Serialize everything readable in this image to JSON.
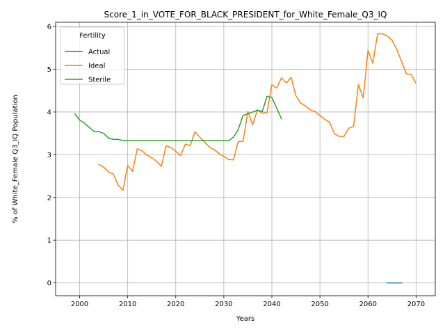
{
  "chart_data": {
    "type": "line",
    "title": "Score_1_in_VOTE_FOR_BLACK_PRESIDENT_for_White_Female_Q3_IQ",
    "xlabel": "Years",
    "ylabel": "% of White_Female Q3_IQ Population",
    "xlim": [
      1995,
      2074
    ],
    "ylim": [
      -0.3,
      6.1
    ],
    "xticks": [
      2000,
      2010,
      2020,
      2030,
      2040,
      2050,
      2060,
      2070
    ],
    "yticks": [
      0,
      1,
      2,
      3,
      4,
      5,
      6
    ],
    "grid": true,
    "legend": {
      "title": "Fertility",
      "placement": "top-left"
    },
    "series": [
      {
        "name": "Actual",
        "color": "#1f77b4",
        "points": [
          [
            2064,
            0.0
          ],
          [
            2065,
            0.0
          ],
          [
            2066,
            0.0
          ],
          [
            2067,
            0.0
          ]
        ]
      },
      {
        "name": "Ideal",
        "color": "#ff7f0e",
        "points": [
          [
            2004,
            2.77
          ],
          [
            2005,
            2.71
          ],
          [
            2006,
            2.6
          ],
          [
            2007,
            2.55
          ],
          [
            2008,
            2.29
          ],
          [
            2009,
            2.17
          ],
          [
            2010,
            2.75
          ],
          [
            2011,
            2.61
          ],
          [
            2012,
            3.14
          ],
          [
            2013,
            3.09
          ],
          [
            2014,
            2.99
          ],
          [
            2015,
            2.93
          ],
          [
            2016,
            2.85
          ],
          [
            2017,
            2.73
          ],
          [
            2018,
            3.21
          ],
          [
            2019,
            3.17
          ],
          [
            2020,
            3.08
          ],
          [
            2021,
            2.98
          ],
          [
            2022,
            3.25
          ],
          [
            2023,
            3.21
          ],
          [
            2024,
            3.54
          ],
          [
            2025,
            3.41
          ],
          [
            2026,
            3.3
          ],
          [
            2027,
            3.18
          ],
          [
            2028,
            3.12
          ],
          [
            2029,
            3.03
          ],
          [
            2030,
            2.96
          ],
          [
            2031,
            2.89
          ],
          [
            2032,
            2.88
          ],
          [
            2033,
            3.31
          ],
          [
            2034,
            3.31
          ],
          [
            2035,
            4.01
          ],
          [
            2036,
            3.7
          ],
          [
            2037,
            4.05
          ],
          [
            2038,
            3.97
          ],
          [
            2039,
            3.99
          ],
          [
            2040,
            4.64
          ],
          [
            2041,
            4.56
          ],
          [
            2042,
            4.8
          ],
          [
            2043,
            4.68
          ],
          [
            2044,
            4.81
          ],
          [
            2045,
            4.38
          ],
          [
            2046,
            4.21
          ],
          [
            2047,
            4.14
          ],
          [
            2048,
            4.05
          ],
          [
            2049,
            4.01
          ],
          [
            2050,
            3.92
          ],
          [
            2051,
            3.83
          ],
          [
            2052,
            3.76
          ],
          [
            2053,
            3.49
          ],
          [
            2054,
            3.43
          ],
          [
            2055,
            3.43
          ],
          [
            2056,
            3.62
          ],
          [
            2057,
            3.66
          ],
          [
            2058,
            4.64
          ],
          [
            2059,
            4.33
          ],
          [
            2060,
            5.44
          ],
          [
            2061,
            5.14
          ],
          [
            2062,
            5.83
          ],
          [
            2063,
            5.83
          ],
          [
            2064,
            5.78
          ],
          [
            2065,
            5.68
          ],
          [
            2066,
            5.46
          ],
          [
            2067,
            5.18
          ],
          [
            2068,
            4.89
          ],
          [
            2069,
            4.88
          ],
          [
            2070,
            4.67
          ]
        ]
      },
      {
        "name": "Sterile",
        "color": "#2ca02c",
        "points": [
          [
            1999,
            3.96
          ],
          [
            2000,
            3.81
          ],
          [
            2001,
            3.74
          ],
          [
            2002,
            3.64
          ],
          [
            2003,
            3.54
          ],
          [
            2004,
            3.54
          ],
          [
            2005,
            3.5
          ],
          [
            2006,
            3.39
          ],
          [
            2007,
            3.36
          ],
          [
            2008,
            3.36
          ],
          [
            2009,
            3.33
          ],
          [
            2010,
            3.33
          ],
          [
            2015,
            3.33
          ],
          [
            2020,
            3.33
          ],
          [
            2025,
            3.33
          ],
          [
            2030,
            3.33
          ],
          [
            2031,
            3.33
          ],
          [
            2032,
            3.41
          ],
          [
            2033,
            3.59
          ],
          [
            2034,
            3.92
          ],
          [
            2035,
            3.96
          ],
          [
            2036,
            4.0
          ],
          [
            2037,
            4.04
          ],
          [
            2038,
            4.01
          ],
          [
            2039,
            4.37
          ],
          [
            2040,
            4.34
          ],
          [
            2041,
            4.09
          ],
          [
            2042,
            3.84
          ]
        ]
      }
    ]
  }
}
